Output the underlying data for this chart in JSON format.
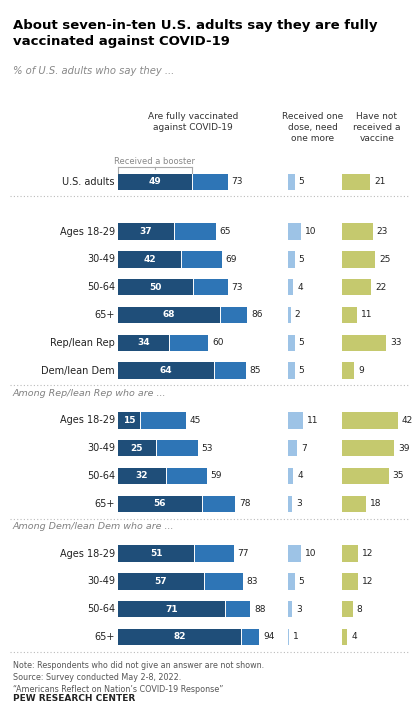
{
  "title": "About seven-in-ten U.S. adults say they are fully\nvaccinated against COVID-19",
  "subtitle": "% of U.S. adults who say they ...",
  "col_headers": [
    "Are fully vaccinated\nagainst COVID-19",
    "Received one\ndose, need\none more",
    "Have not\nreceived a\nvaccine"
  ],
  "booster_label": "Received a booster",
  "rows": [
    {
      "label": "U.S. adults",
      "booster": 49,
      "fully": 73,
      "one_dose": 5,
      "no_vax": 21,
      "section": 0
    },
    {
      "label": "Ages 18-29",
      "booster": 37,
      "fully": 65,
      "one_dose": 10,
      "no_vax": 23,
      "section": 1
    },
    {
      "label": "30-49",
      "booster": 42,
      "fully": 69,
      "one_dose": 5,
      "no_vax": 25,
      "section": 1
    },
    {
      "label": "50-64",
      "booster": 50,
      "fully": 73,
      "one_dose": 4,
      "no_vax": 22,
      "section": 1
    },
    {
      "label": "65+",
      "booster": 68,
      "fully": 86,
      "one_dose": 2,
      "no_vax": 11,
      "section": 1
    },
    {
      "label": "Rep/lean Rep",
      "booster": 34,
      "fully": 60,
      "one_dose": 5,
      "no_vax": 33,
      "section": 1
    },
    {
      "label": "Dem/lean Dem",
      "booster": 64,
      "fully": 85,
      "one_dose": 5,
      "no_vax": 9,
      "section": 1
    },
    {
      "label": "Ages 18-29",
      "booster": 15,
      "fully": 45,
      "one_dose": 11,
      "no_vax": 42,
      "section": 2
    },
    {
      "label": "30-49",
      "booster": 25,
      "fully": 53,
      "one_dose": 7,
      "no_vax": 39,
      "section": 2
    },
    {
      "label": "50-64",
      "booster": 32,
      "fully": 59,
      "one_dose": 4,
      "no_vax": 35,
      "section": 2
    },
    {
      "label": "65+",
      "booster": 56,
      "fully": 78,
      "one_dose": 3,
      "no_vax": 18,
      "section": 2
    },
    {
      "label": "Ages 18-29",
      "booster": 51,
      "fully": 77,
      "one_dose": 10,
      "no_vax": 12,
      "section": 3
    },
    {
      "label": "30-49",
      "booster": 57,
      "fully": 83,
      "one_dose": 5,
      "no_vax": 12,
      "section": 3
    },
    {
      "label": "50-64",
      "booster": 71,
      "fully": 88,
      "one_dose": 3,
      "no_vax": 8,
      "section": 3
    },
    {
      "label": "65+",
      "booster": 82,
      "fully": 94,
      "one_dose": 1,
      "no_vax": 4,
      "section": 3
    }
  ],
  "section_labels": {
    "2": "Among Rep/lean Rep who are ...",
    "3": "Among Dem/lean Dem who are ..."
  },
  "colors": {
    "booster": "#1f4e79",
    "fully": "#2e75b6",
    "one_dose": "#9dc3e6",
    "no_vax": "#c5c96e",
    "section_label": "#808080"
  },
  "note": "Note: Respondents who did not give an answer are not shown.\nSource: Survey conducted May 2-8, 2022.\n“Americans Reflect on Nation’s COVID-19 Response”",
  "source_bold": "PEW RESEARCH CENTER",
  "fig_w": 4.2,
  "fig_h": 7.07
}
